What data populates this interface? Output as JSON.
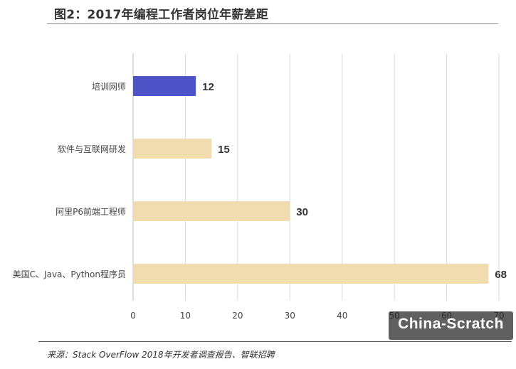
{
  "header": {
    "title": "图2：2017年编程工作者岗位年薪差距"
  },
  "footer": {
    "source": "来源：Stack OverFlow 2018年开发者调查报告、智联招聘"
  },
  "watermark": {
    "text": "China-Scratch"
  },
  "colors": {
    "highlight": "#4e54c8",
    "bar": "#f0dcae",
    "grid": "#d9d9d9",
    "text": "#333333"
  },
  "chart_data": {
    "type": "bar",
    "orientation": "horizontal",
    "title": "图2：2017年编程工作者岗位年薪差距",
    "categories": [
      "培训网师",
      "软件与互联网研发",
      "阿里P6前端工程师",
      "美国C、Java、Python程序员"
    ],
    "values": [
      12,
      15,
      30,
      68
    ],
    "highlight_index": 0,
    "xlim": [
      0,
      70
    ],
    "xticks": [
      0,
      10,
      20,
      30,
      40,
      50,
      60,
      70
    ],
    "xlabel": "",
    "ylabel": "",
    "grid": true,
    "legend": false
  }
}
